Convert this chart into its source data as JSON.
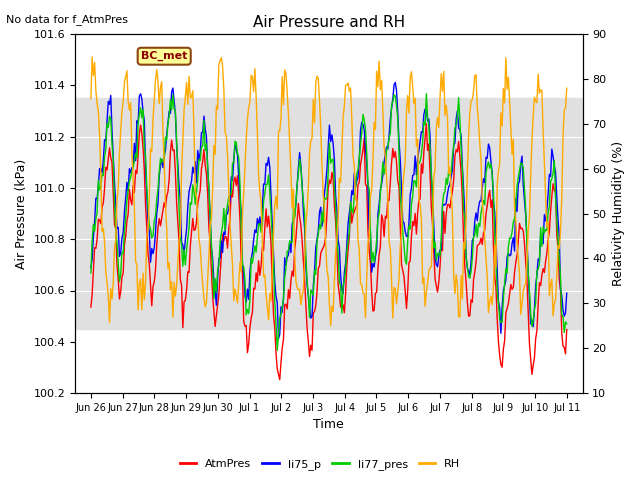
{
  "title": "Air Pressure and RH",
  "top_left_text": "No data for f_AtmPres",
  "xlabel": "Time",
  "ylabel_left": "Air Pressure (kPa)",
  "ylabel_right": "Relativity Humidity (%)",
  "annotation_text": "BC_met",
  "ylim_left": [
    100.2,
    101.6
  ],
  "ylim_right": [
    10,
    90
  ],
  "yticks_left": [
    100.2,
    100.4,
    100.6,
    100.8,
    101.0,
    101.2,
    101.4,
    101.6
  ],
  "yticks_right": [
    10,
    20,
    30,
    40,
    50,
    60,
    70,
    80,
    90
  ],
  "x_tick_positions": [
    0,
    1,
    2,
    3,
    4,
    5,
    6,
    7,
    8,
    9,
    10,
    11,
    12,
    13,
    14,
    15
  ],
  "xticklabels": [
    "Jun 26",
    "Jun 27",
    "Jun 28",
    "Jun 29",
    "Jun 30",
    "Jul 1",
    "Jul 2",
    "Jul 3",
    "Jul 4",
    "Jul 5",
    "Jul 6",
    "Jul 7",
    "Jul 8",
    "Jul 9",
    "Jul 10",
    "Jul 11"
  ],
  "line_colors": {
    "AtmPres": "#ff0000",
    "li75_p": "#0000ff",
    "li77_pres": "#00cc00",
    "RH": "#ffaa00"
  },
  "legend_labels": [
    "AtmPres",
    "li75_p",
    "li77_pres",
    "RH"
  ],
  "bg_band_color": "#e0e0e0",
  "bg_band_ylim": [
    100.45,
    101.35
  ],
  "figsize": [
    6.4,
    4.8
  ],
  "dpi": 100
}
